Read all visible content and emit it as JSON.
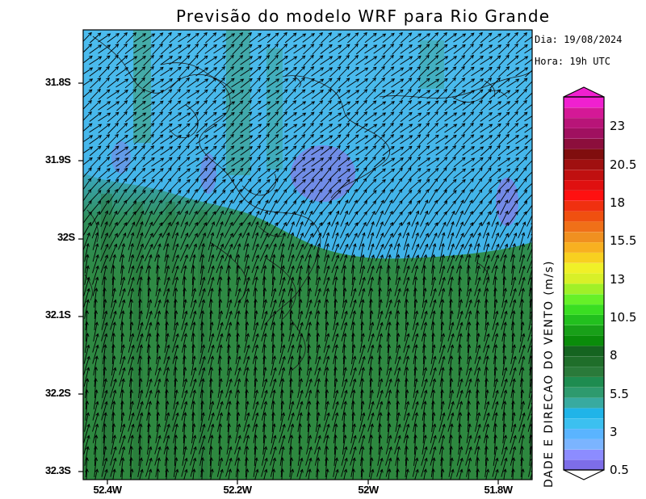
{
  "title": "Previsão do modelo WRF para Rio Grande",
  "date_label": "Dia: 19/08/2024",
  "hour_label": "Hora: 19h UTC",
  "colorbar": {
    "title": "DADE E DIRECAO DO VENTO (m/s)",
    "labels": [
      "23",
      "20.5",
      "18",
      "15.5",
      "13",
      "10.5",
      "8",
      "5.5",
      "3",
      "0.5"
    ],
    "colors": [
      "#7d6de8",
      "#8c8cff",
      "#7bb4ff",
      "#5ab4ff",
      "#3cc0f0",
      "#20b4e8",
      "#38aaa0",
      "#2e9a6e",
      "#1e8c50",
      "#2a7a3a",
      "#1f6e2a",
      "#156420",
      "#0a8c0a",
      "#18a018",
      "#22c01e",
      "#3ade22",
      "#66f028",
      "#a0f028",
      "#d8f028",
      "#f0f028",
      "#f8d020",
      "#f8b020",
      "#f09020",
      "#f07018",
      "#f05010",
      "#f03010",
      "#ff1010",
      "#e01010",
      "#c01010",
      "#a01010",
      "#800e0e",
      "#8c0e3c",
      "#a01060",
      "#b81478",
      "#d41896",
      "#f020d0"
    ]
  },
  "axes": {
    "lat_ticks": [
      "31.8S",
      "31.9S",
      "32S",
      "32.1S",
      "32.2S",
      "32.3S"
    ],
    "lon_ticks": [
      "52.4W",
      "52.2W",
      "52W",
      "51.8W"
    ]
  },
  "colors": {
    "land_green": "#2f8a3c",
    "water_blue": "#47b8e8",
    "calm_purple": "#7f7fe6",
    "arrow": "#000000"
  }
}
